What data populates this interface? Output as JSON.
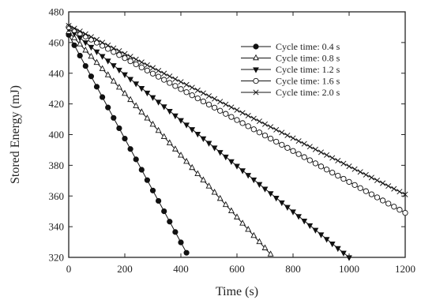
{
  "chart_data": {
    "type": "line",
    "title": "",
    "xlabel": "Time (s)",
    "ylabel": "Stored Energy (mJ)",
    "xlim": [
      0,
      1200
    ],
    "ylim": [
      320,
      480
    ],
    "xticks": [
      0,
      200,
      400,
      600,
      800,
      1000,
      1200
    ],
    "yticks": [
      320,
      340,
      360,
      380,
      400,
      420,
      440,
      460,
      480
    ],
    "grid": false,
    "legend_position": "top-right",
    "series": [
      {
        "name": "Cycle time: 0.4 s",
        "marker": "filled-circle",
        "x": [
          0,
          420
        ],
        "y": [
          465,
          323
        ]
      },
      {
        "name": "Cycle time: 0.8 s",
        "marker": "open-triangle-up",
        "x": [
          0,
          725
        ],
        "y": [
          467,
          321
        ]
      },
      {
        "name": "Cycle time: 1.2 s",
        "marker": "filled-triangle-down",
        "x": [
          0,
          1000
        ],
        "y": [
          469,
          320
        ]
      },
      {
        "name": "Cycle time: 1.6 s",
        "marker": "open-circle",
        "x": [
          0,
          1200
        ],
        "y": [
          470,
          349
        ]
      },
      {
        "name": "Cycle time: 2.0 s",
        "marker": "x",
        "x": [
          0,
          1200
        ],
        "y": [
          471,
          361
        ]
      }
    ]
  }
}
